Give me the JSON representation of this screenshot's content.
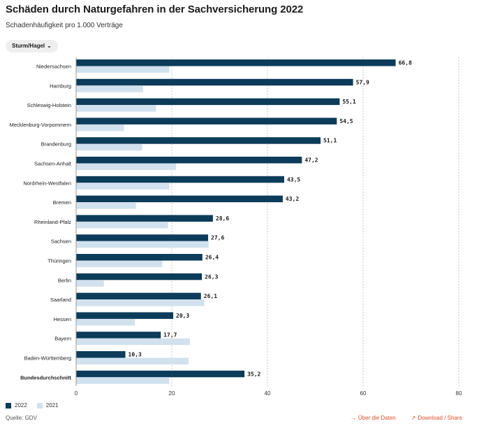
{
  "header": {
    "title": "Schäden durch Naturgefahren in der Sachversicherung 2022",
    "subtitle": "Schadenhäufigkeit pro 1.000 Verträge"
  },
  "filter": {
    "selected": "Sturm/Hagel",
    "icon": "chevron-down-icon"
  },
  "legend": {
    "items": [
      {
        "label": "2022",
        "color": "#0c3c5a"
      },
      {
        "label": "2021",
        "color": "#d2e1ee"
      }
    ]
  },
  "footer": {
    "source": "Quelle: GDV",
    "data_link": "Über die Daten",
    "share_link": "Download / Share"
  },
  "chart_data": {
    "type": "bar",
    "orientation": "horizontal",
    "categories": [
      "Niedersachsen",
      "Hamburg",
      "Schleswig-Holstein",
      "Mecklenburg-Vorpommern",
      "Brandenburg",
      "Sachsen-Anhalt",
      "Nordrhein-Westfalen",
      "Bremen",
      "Rheinland-Pfalz",
      "Sachsen",
      "Thüringen",
      "Berlin",
      "Saarland",
      "Hessen",
      "Bayern",
      "Baden-Württemberg",
      "Bundesdurchschnitt"
    ],
    "highlight_category": "Bundesdurchschnitt",
    "series": [
      {
        "name": "2022",
        "color": "#0c3c5a",
        "values": [
          66.8,
          57.9,
          55.1,
          54.5,
          51.1,
          47.2,
          43.5,
          43.2,
          28.6,
          27.6,
          26.4,
          26.3,
          26.1,
          20.3,
          17.7,
          10.3,
          35.2
        ],
        "labels": [
          "66,8",
          "57,9",
          "55,1",
          "54,5",
          "51,1",
          "47,2",
          "43,5",
          "43,2",
          "28,6",
          "27,6",
          "26,4",
          "26,3",
          "26,1",
          "20,3",
          "17,7",
          "10,3",
          "35,2"
        ]
      },
      {
        "name": "2021",
        "color": "#d2e1ee",
        "values": [
          19.5,
          14.0,
          16.7,
          10.0,
          13.8,
          20.9,
          19.5,
          12.5,
          19.2,
          27.7,
          18.0,
          5.8,
          26.8,
          12.3,
          23.8,
          23.5,
          19.5
        ]
      }
    ],
    "xlim": [
      0,
      80
    ],
    "xticks": [
      0,
      20,
      40,
      60,
      80
    ],
    "grid": true
  }
}
